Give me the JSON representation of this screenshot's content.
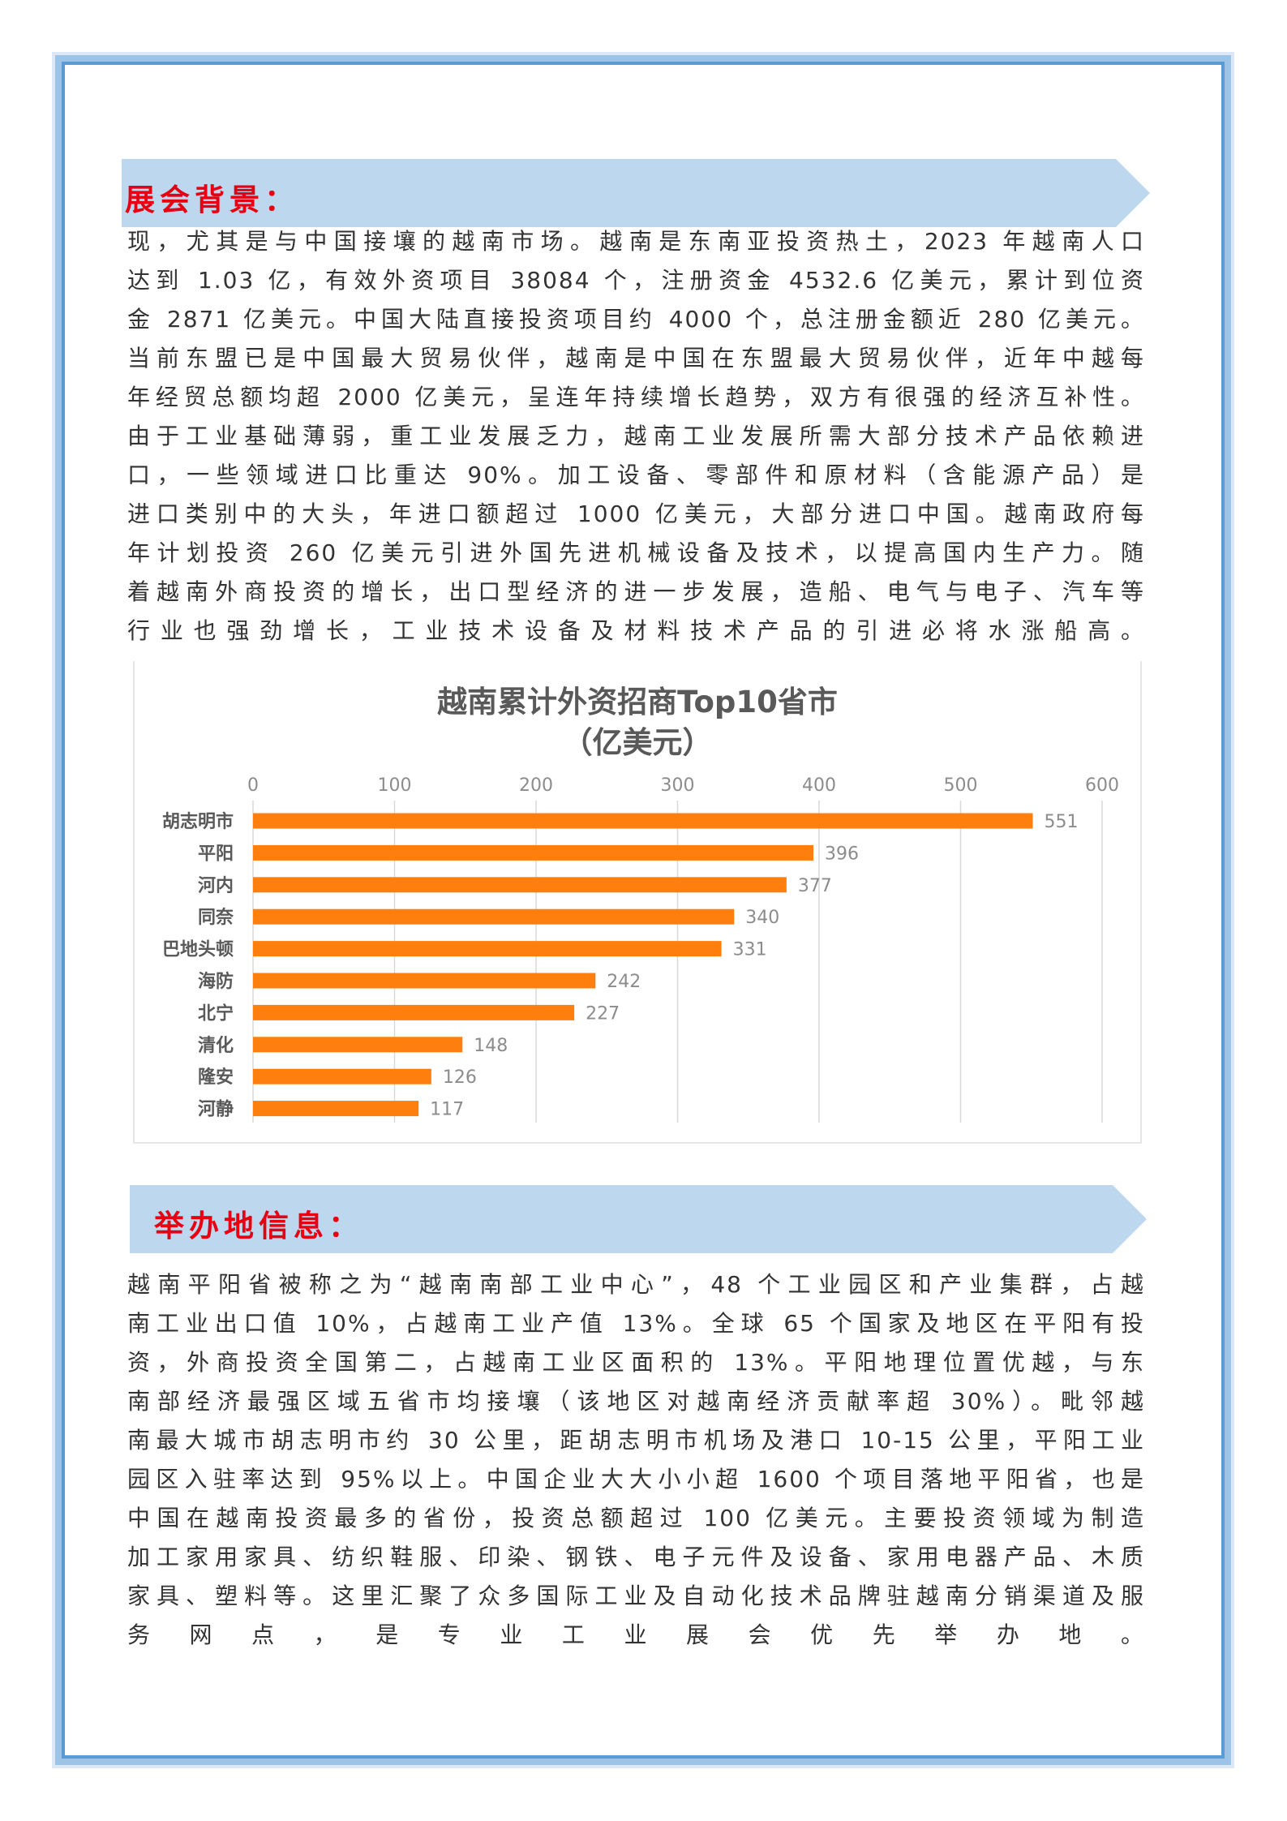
{
  "section1": {
    "title": "展会背景：",
    "lines": [
      "现，尤其是与中国接壤的越南市场。越南是东南亚投资热土，2023 年越南人口",
      "达到 1.03 亿，有效外资项目 38084 个，注册资金 4532.6 亿美元，累计到位资",
      "金 2871 亿美元。中国大陆直接投资项目约 4000 个，总注册金额近 280 亿美元。",
      "当前东盟已是中国最大贸易伙伴，越南是中国在东盟最大贸易伙伴，近年中越每",
      "年经贸总额均超 2000 亿美元，呈连年持续增长趋势，双方有很强的经济互补性。",
      "由于工业基础薄弱，重工业发展乏力，越南工业发展所需大部分技术产品依赖进",
      "口，一些领域进口比重达 90%。加工设备、零部件和原材料（含能源产品）是",
      "进口类别中的大头，年进口额超过 1000 亿美元，大部分进口中国。越南政府每",
      "年计划投资 260 亿美元引进外国先进机械设备及技术，以提高国内生产力。随",
      "着越南外商投资的增长，出口型经济的进一步发展，造船、电气与电子、汽车等",
      "行业也强劲增长，工业技术设备及材料技术产品的引进必将水涨船高。"
    ]
  },
  "chart_data": {
    "type": "bar",
    "orientation": "horizontal",
    "title": "越南累计外资招商Top10省市",
    "subtitle": "（亿美元）",
    "categories": [
      "胡志明市",
      "平阳",
      "河内",
      "同奈",
      "巴地头顿",
      "海防",
      "北宁",
      "清化",
      "隆安",
      "河静"
    ],
    "values": [
      551,
      396,
      377,
      340,
      331,
      242,
      227,
      148,
      126,
      117
    ],
    "xlim": [
      0,
      600
    ],
    "ticks": [
      "0",
      "100",
      "200",
      "300",
      "400",
      "500",
      "600"
    ],
    "grid": true,
    "bar_color": "#ff7f0e"
  },
  "section2": {
    "title": "举办地信息：",
    "lines": [
      "越南平阳省被称之为“越南南部工业中心”，48 个工业园区和产业集群，占越",
      "南工业出口值 10%，占越南工业产值 13%。全球 65 个国家及地区在平阳有投",
      "资，外商投资全国第二，占越南工业区面积的 13%。平阳地理位置优越，与东",
      "南部经济最强区域五省市均接壤（该地区对越南经济贡献率超 30%）。毗邻越",
      "南最大城市胡志明市约 30 公里，距胡志明市机场及港口 10-15 公里，平阳工业",
      "园区入驻率达到 95%以上。中国企业大大小小超 1600 个项目落地平阳省，也是",
      "中国在越南投资最多的省份，投资总额超过 100 亿美元。主要投资领域为制造",
      "加工家用家具、纺织鞋服、印染、钢铁、电子元件及设备、家用电器产品、木质",
      "家具、塑料等。这里汇聚了众多国际工业及自动化技术品牌驻越南分销渠道及服",
      "务网点，是专业工业展会优先举办地。"
    ]
  },
  "colors": {
    "banner": "#bdd7ee",
    "title_red": "#e60012",
    "border": "#5b9bd5"
  }
}
